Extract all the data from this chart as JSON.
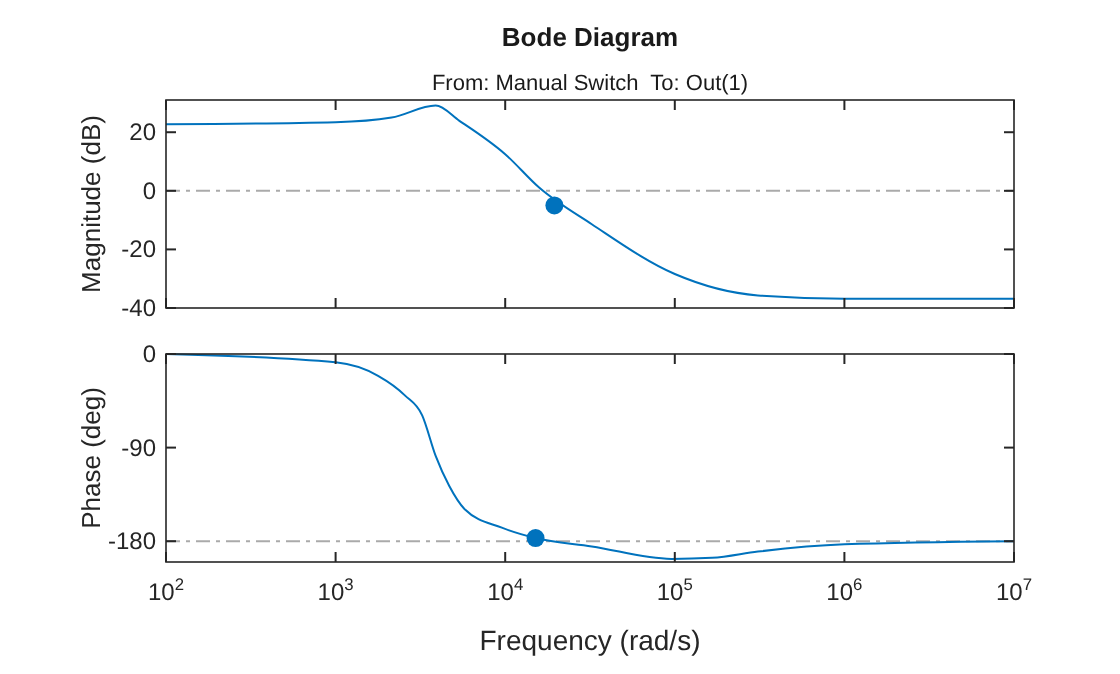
{
  "chart_data": [
    {
      "type": "line",
      "title": "Bode Diagram",
      "subtitle": "From: Manual Switch  To: Out(1)",
      "ylabel": "Magnitude (dB)",
      "log": "x",
      "tick_labels": "y",
      "xlim": [
        100,
        10000000
      ],
      "xticks": [
        {
          "value": 100,
          "label": null
        },
        {
          "value": 1000,
          "label": null
        },
        {
          "value": 10000,
          "label": null
        },
        {
          "value": 100000,
          "label": null
        },
        {
          "value": 1000000,
          "label": null
        },
        {
          "value": 10000000,
          "label": null
        }
      ],
      "ylim": [
        -40,
        31
      ],
      "yticks": [
        -40,
        -20,
        0,
        20
      ],
      "ref_lines": [
        {
          "axis": "y",
          "value": 0,
          "color": "#aaaaaa",
          "line_style": "dashdot"
        }
      ],
      "series": [
        {
          "color": "#0072bd",
          "x": [
            100,
            1000,
            2140,
            3890,
            5370,
            10000,
            15850,
            32400,
            100000,
            309000,
            1000000,
            10000000
          ],
          "values": [
            22.7,
            23.4,
            25,
            29.1,
            23.9,
            12.5,
            1.1,
            -11.4,
            -28.4,
            -35.7,
            -36.8,
            -36.8
          ]
        },
        {
          "type": "scatter",
          "color": "#0072bd",
          "marker": "circle",
          "x": [
            19500
          ],
          "values": [
            -5
          ]
        }
      ]
    },
    {
      "type": "line",
      "ylabel": "Phase (deg)",
      "xlabel": "Frequency (rad/s)",
      "log": "x",
      "xlim": [
        100,
        10000000
      ],
      "xticks": [
        {
          "value": 100,
          "label": "10$^{2}$"
        },
        {
          "value": 1000,
          "label": "10$^{3}$"
        },
        {
          "value": 10000,
          "label": "10$^{4}$"
        },
        {
          "value": 100000,
          "label": "10$^{5}$"
        },
        {
          "value": 1000000,
          "label": "10$^{6}$"
        },
        {
          "value": 10000000,
          "label": "10$^{7}$"
        }
      ],
      "ylim": [
        -200,
        0
      ],
      "yticks": [
        -180,
        -90,
        0
      ],
      "ref_lines": [
        {
          "axis": "y",
          "value": -180,
          "color": "#aaaaaa",
          "line_style": "dashdot"
        }
      ],
      "series": [
        {
          "color": "#0072bd",
          "x": [
            100,
            1000,
            1780,
            2570,
            3240,
            3890,
            4680,
            5750,
            9550,
            15100,
            32400,
            95500,
            166000,
            309000,
            1000000,
            10000000
          ],
          "values": [
            0,
            -8,
            -21,
            -40,
            -59,
            -98,
            -127,
            -149,
            -167,
            -177,
            -185,
            -197,
            -196,
            -190,
            -183,
            -180
          ]
        },
        {
          "type": "scatter",
          "color": "#0072bd",
          "marker": "circle",
          "x": [
            15100
          ],
          "values": [
            -177
          ]
        }
      ]
    }
  ]
}
